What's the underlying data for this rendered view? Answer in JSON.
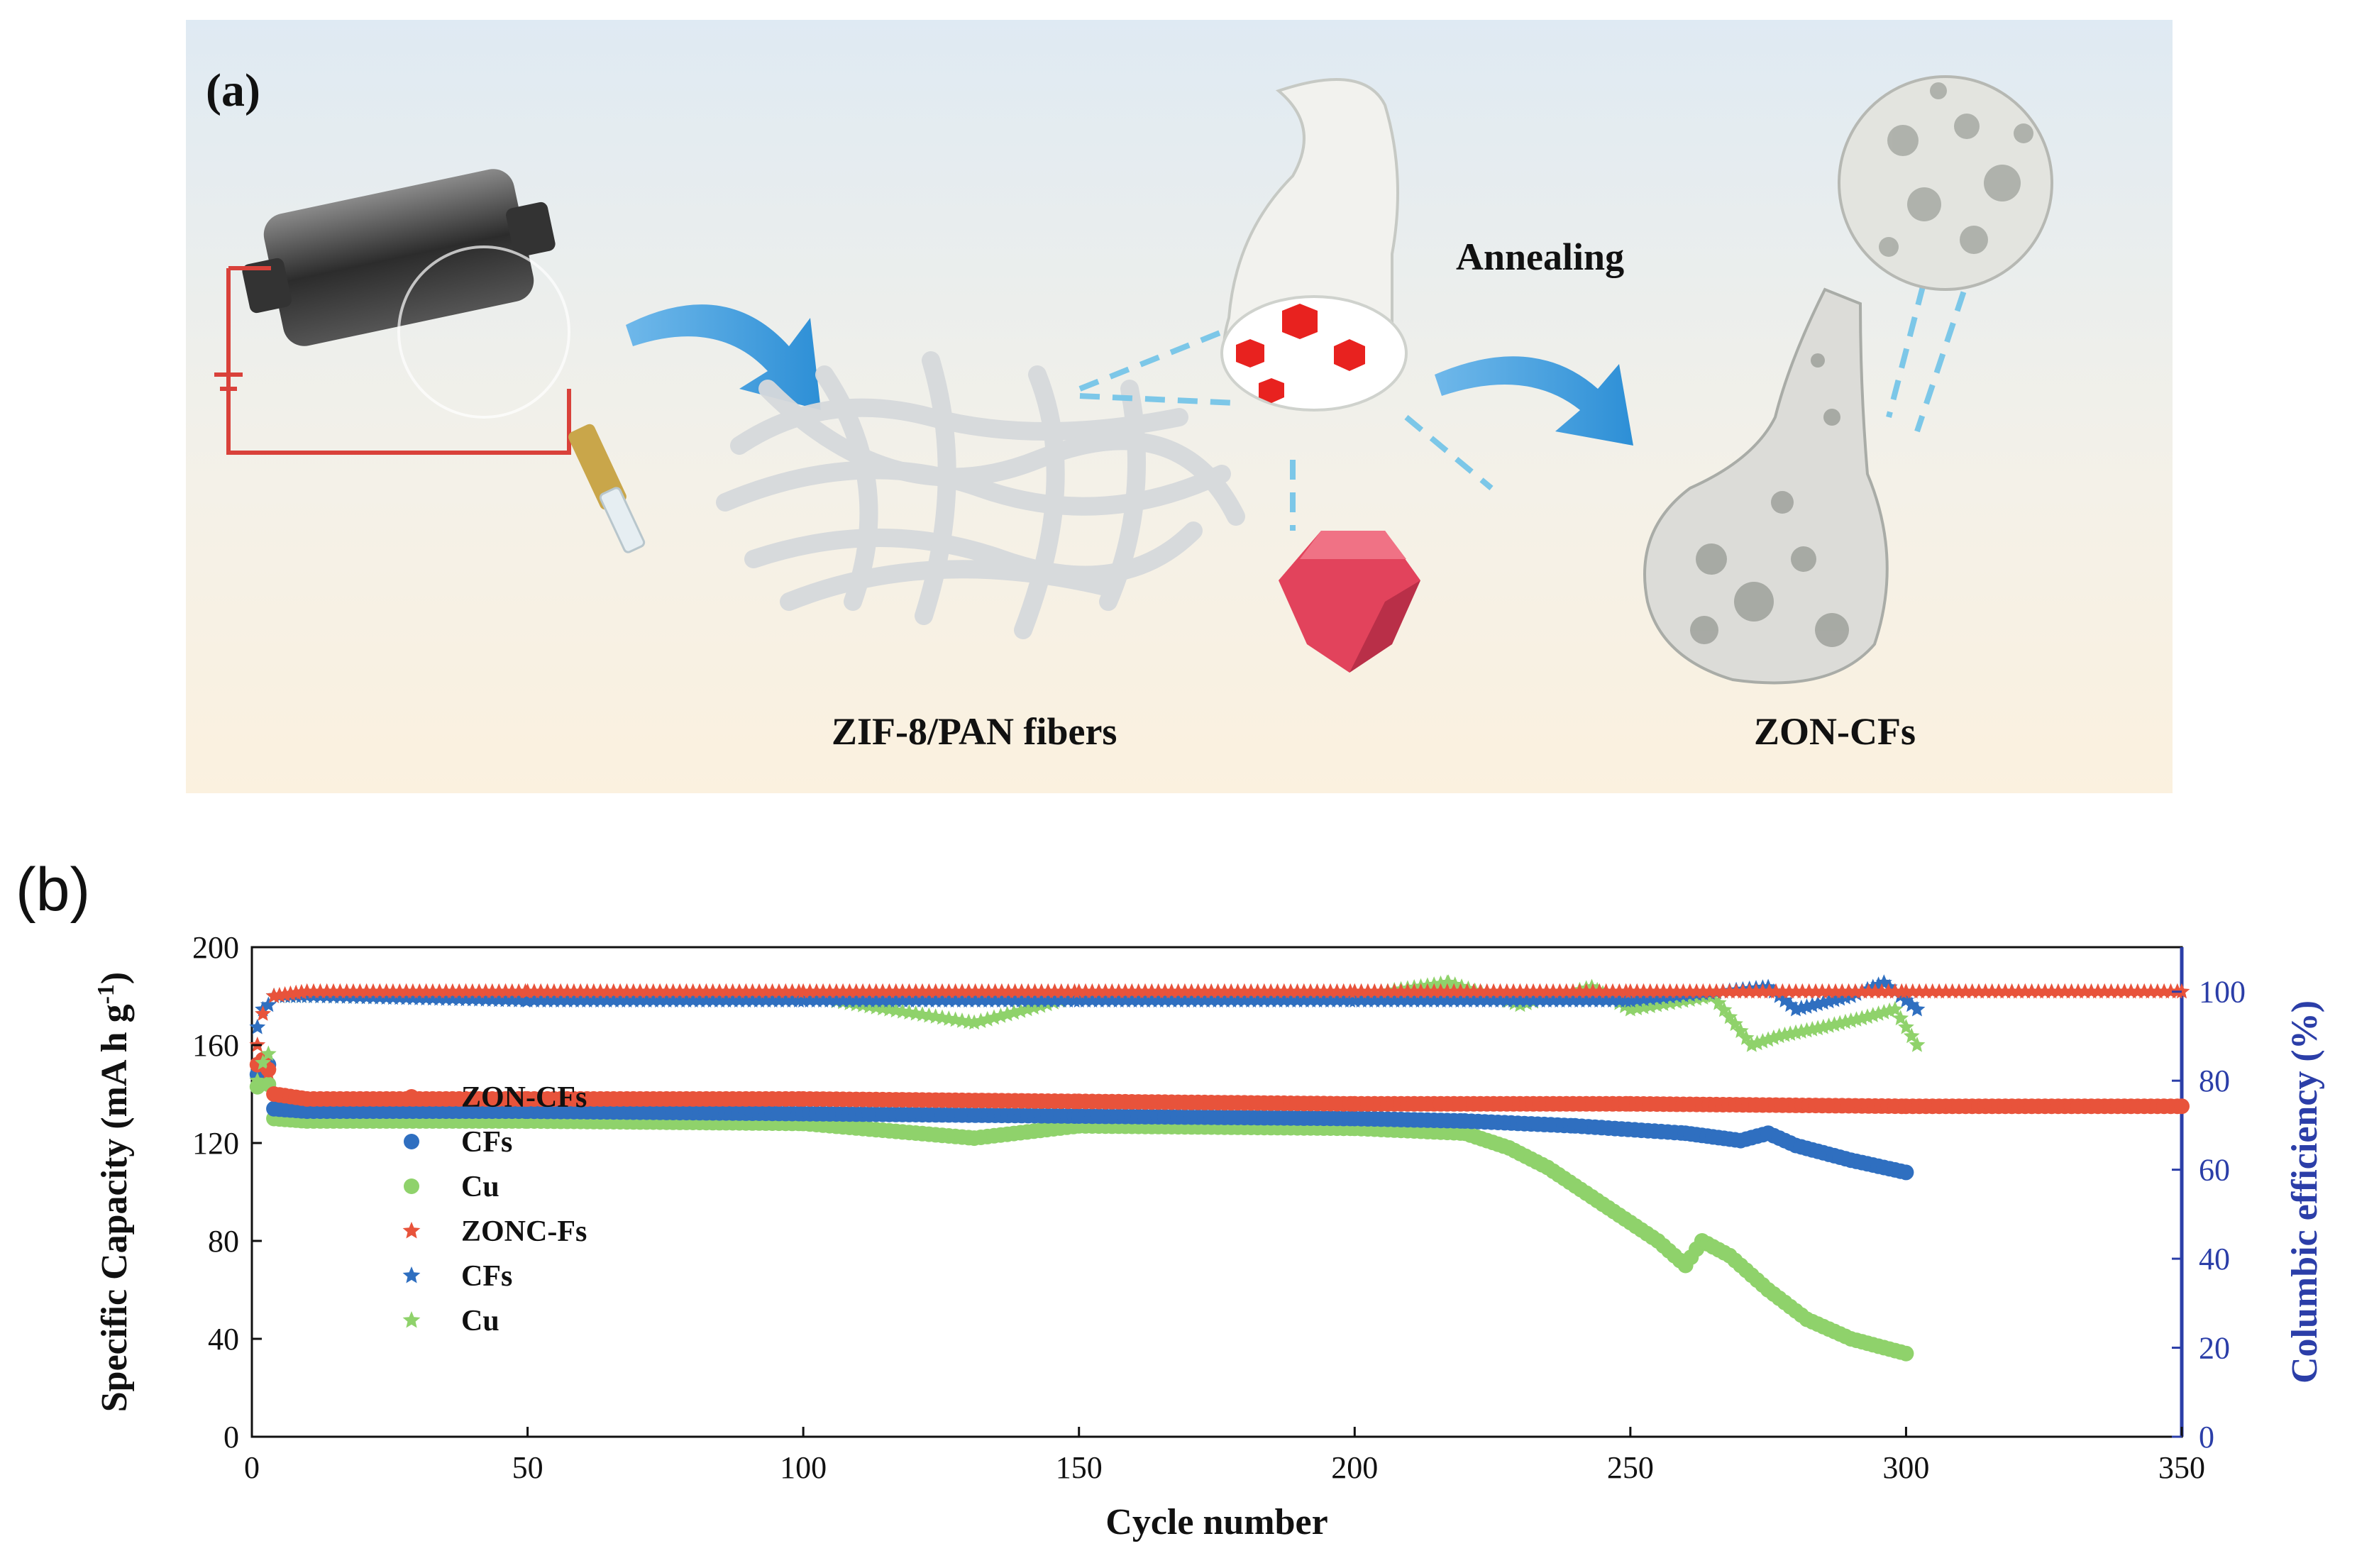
{
  "panel_a": {
    "label": "(a)",
    "step_label": "Annealing",
    "caption_left": "ZIF-8/PAN fibers",
    "caption_right": "ZON-CFs"
  },
  "panel_b": {
    "label": "(b)"
  },
  "colors": {
    "red": "#e8533b",
    "blue": "#2f6fc0",
    "green": "#8fd26b",
    "axis_right": "#2b3ea8"
  },
  "chart_data": {
    "type": "scatter",
    "title": "",
    "xlabel": "Cycle number",
    "ylabel": "Specific Capacity (mA h g",
    "ylabel_sup": "-1",
    "ylabel_end": ")",
    "y2label": "Columbic efficiency (%)",
    "xlim": [
      0,
      350
    ],
    "ylim": [
      0,
      200
    ],
    "y2lim": [
      0,
      110
    ],
    "x_ticks": [
      0,
      50,
      100,
      150,
      200,
      250,
      300,
      350
    ],
    "y_ticks": [
      0,
      40,
      80,
      120,
      160,
      200
    ],
    "y2_ticks": [
      0,
      20,
      40,
      60,
      80,
      100
    ],
    "legend_position": "middle-left",
    "series": [
      {
        "name": "ZON-CFs",
        "marker": "circle",
        "color": "#e8533b",
        "axis": "left",
        "points": [
          [
            1,
            152
          ],
          [
            2,
            154
          ],
          [
            3,
            150
          ],
          [
            4,
            140
          ],
          [
            10,
            138
          ],
          [
            50,
            138
          ],
          [
            100,
            138
          ],
          [
            150,
            137
          ],
          [
            200,
            136
          ],
          [
            250,
            136
          ],
          [
            300,
            135
          ],
          [
            350,
            135
          ]
        ]
      },
      {
        "name": "CFs",
        "marker": "circle",
        "color": "#2f6fc0",
        "axis": "left",
        "points": [
          [
            1,
            148
          ],
          [
            2,
            151
          ],
          [
            3,
            152
          ],
          [
            4,
            134
          ],
          [
            10,
            133
          ],
          [
            50,
            133
          ],
          [
            100,
            132
          ],
          [
            150,
            131
          ],
          [
            200,
            130
          ],
          [
            220,
            129
          ],
          [
            240,
            127
          ],
          [
            260,
            124
          ],
          [
            270,
            121
          ],
          [
            275,
            124
          ],
          [
            280,
            119
          ],
          [
            290,
            113
          ],
          [
            300,
            108
          ]
        ]
      },
      {
        "name": "Cu",
        "marker": "circle",
        "color": "#8fd26b",
        "axis": "left",
        "points": [
          [
            1,
            143
          ],
          [
            2,
            146
          ],
          [
            3,
            144
          ],
          [
            4,
            130
          ],
          [
            10,
            129
          ],
          [
            50,
            129
          ],
          [
            100,
            128
          ],
          [
            131,
            122
          ],
          [
            150,
            127
          ],
          [
            200,
            126
          ],
          [
            220,
            124
          ],
          [
            228,
            118
          ],
          [
            235,
            110
          ],
          [
            245,
            95
          ],
          [
            255,
            80
          ],
          [
            260,
            70
          ],
          [
            263,
            80
          ],
          [
            268,
            74
          ],
          [
            275,
            60
          ],
          [
            282,
            48
          ],
          [
            290,
            40
          ],
          [
            300,
            34
          ]
        ]
      },
      {
        "name": "ZONC-Fs",
        "marker": "star",
        "color": "#e8533b",
        "axis": "right",
        "points": [
          [
            1,
            88
          ],
          [
            2,
            95
          ],
          [
            3,
            82
          ],
          [
            4,
            99
          ],
          [
            10,
            100
          ],
          [
            50,
            100
          ],
          [
            100,
            100
          ],
          [
            150,
            100
          ],
          [
            200,
            100
          ],
          [
            250,
            100
          ],
          [
            300,
            100
          ],
          [
            350,
            100
          ]
        ]
      },
      {
        "name": "CFs",
        "marker": "star",
        "color": "#2f6fc0",
        "axis": "right",
        "points": [
          [
            1,
            92
          ],
          [
            2,
            96
          ],
          [
            3,
            97
          ],
          [
            4,
            99
          ],
          [
            10,
            99
          ],
          [
            50,
            98
          ],
          [
            100,
            98
          ],
          [
            150,
            98
          ],
          [
            200,
            98
          ],
          [
            250,
            98
          ],
          [
            275,
            101
          ],
          [
            280,
            96
          ],
          [
            290,
            99
          ],
          [
            296,
            102
          ],
          [
            302,
            96
          ]
        ]
      },
      {
        "name": "Cu",
        "marker": "star",
        "color": "#8fd26b",
        "axis": "right",
        "points": [
          [
            1,
            80
          ],
          [
            2,
            84
          ],
          [
            3,
            86
          ],
          [
            4,
            99
          ],
          [
            10,
            99
          ],
          [
            50,
            99
          ],
          [
            100,
            99
          ],
          [
            131,
            93
          ],
          [
            150,
            99
          ],
          [
            200,
            99
          ],
          [
            217,
            102
          ],
          [
            230,
            97
          ],
          [
            243,
            101
          ],
          [
            250,
            96
          ],
          [
            265,
            99
          ],
          [
            272,
            88
          ],
          [
            277,
            90
          ],
          [
            285,
            92
          ],
          [
            292,
            94
          ],
          [
            298,
            96
          ],
          [
            302,
            88
          ]
        ]
      }
    ]
  }
}
